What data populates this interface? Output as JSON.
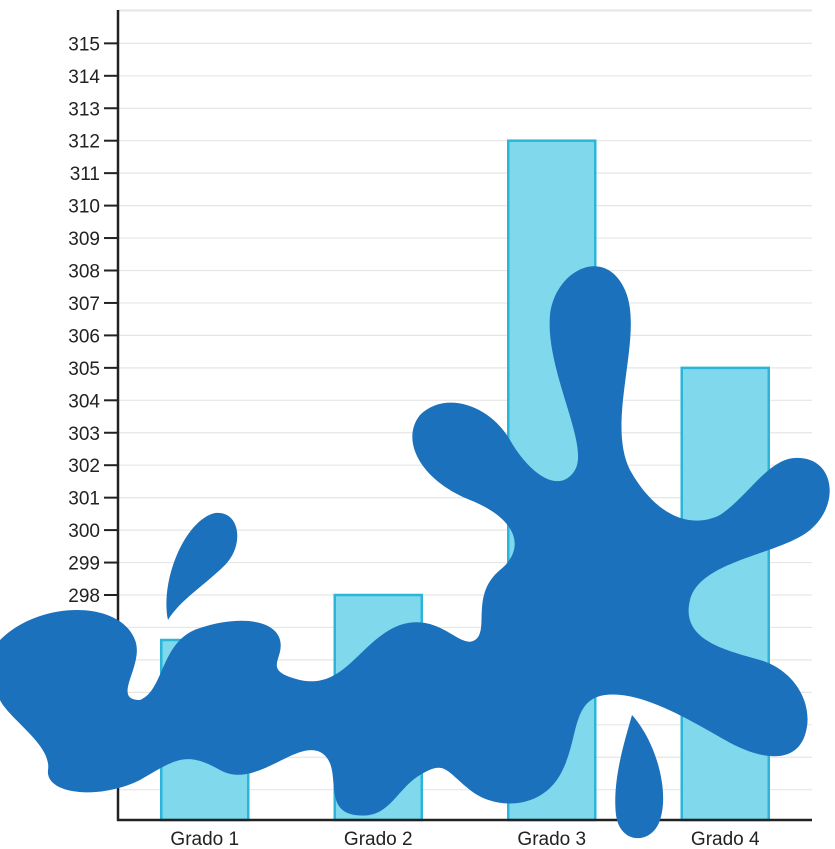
{
  "chart_data": {
    "type": "bar",
    "categories": [
      "Grado 1",
      "Grado 2",
      "Grado 3",
      "Grado 4"
    ],
    "values": [
      null,
      298,
      312,
      305
    ],
    "y_ticks": [
      "298",
      "299",
      "300",
      "301",
      "302",
      "303",
      "304",
      "305",
      "306",
      "307",
      "308",
      "309",
      "310",
      "311",
      "312",
      "313",
      "314",
      "315"
    ],
    "ylim": [
      288,
      316
    ],
    "grid": true,
    "colors": {
      "bar_fill": "#7FD8EC",
      "bar_stroke": "#2BB6D9",
      "splash": "#1B71BC",
      "grid": "#e6e6e6",
      "axis": "#222222"
    },
    "obscured_by": "ink-splash"
  }
}
